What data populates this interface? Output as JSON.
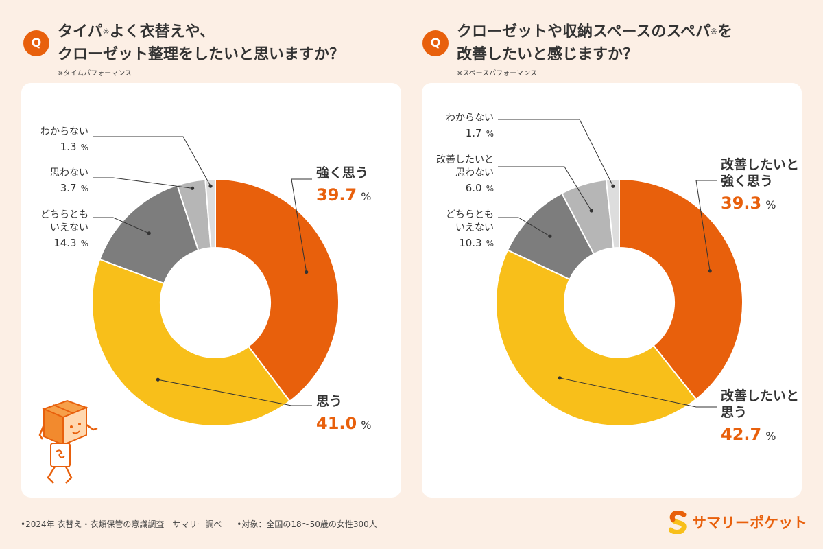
{
  "questions": {
    "left": {
      "badge": "Q",
      "title_line1_a": "タイパ",
      "title_mark": "※",
      "title_line1_b": "よく衣替えや、",
      "title_line2": "クローゼット整理をしたいと思いますか？",
      "note": "※タイムパフォーマンス"
    },
    "right": {
      "badge": "Q",
      "title_line1_a": "クローゼットや収納スペースのスペパ",
      "title_mark": "※",
      "title_line1_b": "を",
      "title_line2": "改善したいと感じますか？",
      "note": "※スペースパフォーマンス"
    }
  },
  "chart_data": [
    {
      "type": "pie",
      "title": "タイパよく衣替えや、クローゼット整理をしたいと思いますか？",
      "categories": [
        "強く思う",
        "思う",
        "どちらともいえない",
        "思わない",
        "わからない"
      ],
      "values": [
        39.7,
        41.0,
        14.3,
        3.7,
        1.3
      ],
      "unit": "%",
      "colors": [
        "#e8600c",
        "#f8bf1a",
        "#7d7d7d",
        "#b6b6b6",
        "#dddddd"
      ],
      "label_lines": [
        [
          "強く思う"
        ],
        [
          "思う"
        ],
        [
          "どちらとも",
          "いえない"
        ],
        [
          "思わない"
        ],
        [
          "わからない"
        ]
      ],
      "value_text": [
        "39.7",
        "41.0",
        "14.3",
        "3.7",
        "1.3"
      ]
    },
    {
      "type": "pie",
      "title": "クローゼットや収納スペースのスペパを改善したいと感じますか？",
      "categories": [
        "改善したいと強く思う",
        "改善したいと思う",
        "どちらともいえない",
        "改善したいと思わない",
        "わからない"
      ],
      "values": [
        39.3,
        42.7,
        10.3,
        6.0,
        1.7
      ],
      "unit": "%",
      "colors": [
        "#e8600c",
        "#f8bf1a",
        "#7d7d7d",
        "#b6b6b6",
        "#dddddd"
      ],
      "label_lines": [
        [
          "改善したいと",
          "強く思う"
        ],
        [
          "改善したいと",
          "思う"
        ],
        [
          "どちらとも",
          "いえない"
        ],
        [
          "改善したいと",
          "思わない"
        ],
        [
          "わからない"
        ]
      ],
      "value_text": [
        "39.3",
        "42.7",
        "10.3",
        "6.0",
        "1.7"
      ]
    }
  ],
  "footer": {
    "survey": "•2024年 衣替え・衣類保管の意識調査　サマリー調べ",
    "target": "•対象：全国の18〜50歳の女性300人"
  },
  "brand": {
    "name": "サマリーポケット",
    "accent": "#e8600c"
  }
}
